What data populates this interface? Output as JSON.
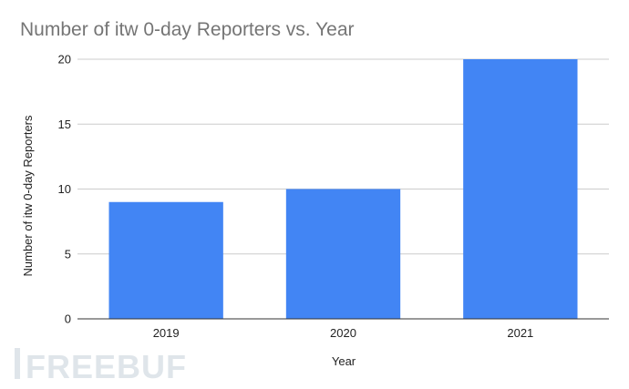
{
  "chart_data": {
    "type": "bar",
    "title": "Number of itw 0-day Reporters vs. Year",
    "categories": [
      "2019",
      "2020",
      "2021"
    ],
    "values": [
      9,
      10,
      20
    ],
    "xlabel": "Year",
    "ylabel": "Number of itw 0-day Reporters",
    "ylim": [
      0,
      20
    ],
    "yticks": [
      0,
      5,
      10,
      15,
      20
    ],
    "grid": true,
    "legend": "none",
    "bar_color": "#4285f4",
    "grid_color": "#cccccc"
  },
  "watermark": {
    "text": "FREEBUF",
    "color": "#dfe5ea"
  }
}
